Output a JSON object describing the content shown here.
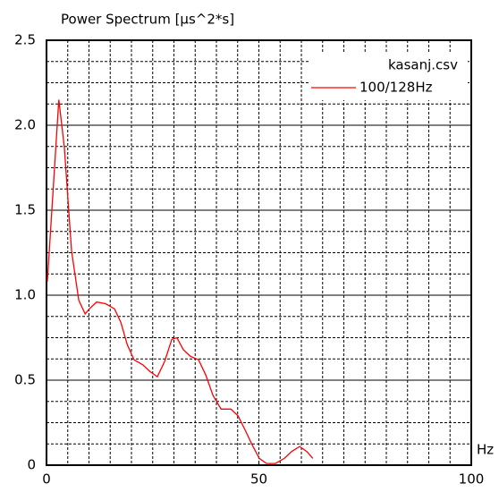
{
  "chart_data": {
    "type": "line",
    "title": "Power Spectrum [μs^2*s]",
    "x_label": "Hz",
    "legend_title": "kasanj.csv",
    "legend": "upper right",
    "xlim": [
      0,
      100
    ],
    "xticks": [
      0,
      50,
      100
    ],
    "ylim": [
      0,
      2.5
    ],
    "yticks": [
      0,
      0.5,
      {
        "value": 1,
        "label": "1.0"
      },
      1.5,
      {
        "value": 2,
        "label": "2.0"
      },
      2.5
    ],
    "xminor": [
      5,
      10,
      15,
      20,
      25,
      30,
      35,
      40,
      45,
      50,
      55,
      60,
      65,
      70,
      75,
      80,
      85,
      90,
      95
    ],
    "yminor": [
      0.125,
      0.25,
      0.375,
      0.625,
      0.75,
      0.875,
      1.125,
      1.25,
      1.375,
      1.625,
      1.75,
      1.875,
      2.125,
      2.25,
      2.375
    ],
    "grid": true,
    "series": [
      {
        "name": "100/128Hz",
        "color": "#ff0000",
        "x": [
          0.2,
          2.9,
          4.2,
          5.9,
          7.6,
          9.1,
          10.1,
          11.8,
          13.9,
          16,
          17.5,
          19,
          20.6,
          22.7,
          24.4,
          26.1,
          27.8,
          29.5,
          30.7,
          32.2,
          33.9,
          35.8,
          37.5,
          39.2,
          41.1,
          43.4,
          45.1,
          46.7,
          48.4,
          50.1,
          51.8,
          53.9,
          56,
          57.7,
          59.6,
          61.3,
          62.7
        ],
        "values": [
          1.08,
          2.15,
          1.87,
          1.26,
          0.97,
          0.89,
          0.92,
          0.96,
          0.95,
          0.92,
          0.84,
          0.71,
          0.62,
          0.59,
          0.55,
          0.52,
          0.61,
          0.74,
          0.75,
          0.68,
          0.64,
          0.62,
          0.53,
          0.41,
          0.33,
          0.33,
          0.29,
          0.21,
          0.12,
          0.04,
          0.01,
          0.01,
          0.04,
          0.08,
          0.11,
          0.08,
          0.04
        ]
      }
    ]
  }
}
